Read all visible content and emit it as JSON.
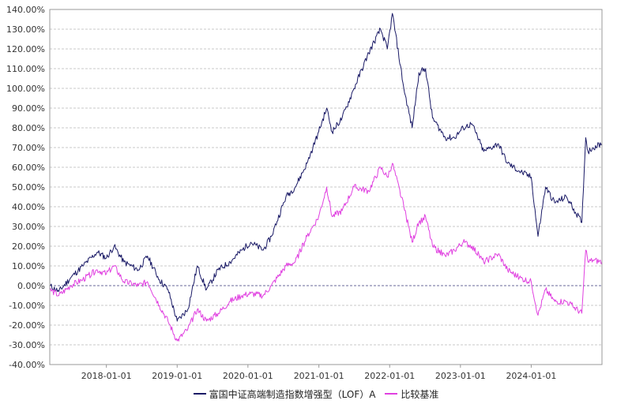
{
  "chart_data": {
    "type": "line",
    "ylim": [
      -40,
      140
    ],
    "y_ticks": [
      "140.00%",
      "130.00%",
      "120.00%",
      "110.00%",
      "100.00%",
      "90.00%",
      "80.00%",
      "70.00%",
      "60.00%",
      "50.00%",
      "40.00%",
      "30.00%",
      "20.00%",
      "10.00%",
      "0.00%",
      "-10.00%",
      "-20.00%",
      "-30.00%",
      "-40.00%"
    ],
    "x_range": [
      "2017-03-15",
      "2024-12-31"
    ],
    "x_ticks": [
      "2018-01-01",
      "2019-01-01",
      "2020-01-01",
      "2021-01-01",
      "2022-01-01",
      "2023-01-01",
      "2024-01-01"
    ],
    "grid": true,
    "legend_position": "bottom",
    "series": [
      {
        "name": "富国中证高端制造指数增强型（LOF）A",
        "color": "#1a1a66",
        "x": [
          "2017-03-15",
          "2017-05-01",
          "2017-07-01",
          "2017-09-01",
          "2017-11-15",
          "2018-01-01",
          "2018-02-10",
          "2018-04-01",
          "2018-06-15",
          "2018-08-01",
          "2018-10-01",
          "2018-11-15",
          "2019-01-01",
          "2019-02-25",
          "2019-04-15",
          "2019-06-01",
          "2019-08-01",
          "2019-10-01",
          "2019-12-01",
          "2020-01-15",
          "2020-03-20",
          "2020-05-01",
          "2020-07-15",
          "2020-09-01",
          "2020-11-01",
          "2020-12-01",
          "2020-12-31",
          "2021-02-10",
          "2021-03-10",
          "2021-05-01",
          "2021-07-01",
          "2021-09-15",
          "2021-11-15",
          "2021-12-20",
          "2022-01-15",
          "2022-03-15",
          "2022-04-27",
          "2022-06-01",
          "2022-07-05",
          "2022-08-10",
          "2022-10-15",
          "2022-12-01",
          "2023-01-15",
          "2023-03-01",
          "2023-05-01",
          "2023-07-15",
          "2023-09-01",
          "2023-11-01",
          "2024-01-01",
          "2024-02-05",
          "2024-03-15",
          "2024-05-01",
          "2024-07-01",
          "2024-09-18",
          "2024-10-08",
          "2024-10-20",
          "2024-11-15",
          "2024-12-31"
        ],
        "values": [
          0,
          -3,
          4,
          10,
          17,
          14,
          20,
          12,
          8,
          15,
          3,
          -2,
          -18,
          -12,
          10,
          -2,
          8,
          12,
          18,
          22,
          18,
          25,
          45,
          50,
          62,
          70,
          78,
          90,
          78,
          85,
          100,
          118,
          130,
          120,
          138,
          100,
          80,
          108,
          110,
          85,
          75,
          75,
          80,
          82,
          68,
          72,
          62,
          58,
          55,
          25,
          50,
          42,
          45,
          32,
          75,
          68,
          70,
          72
        ]
      },
      {
        "name": "比较基准",
        "color": "#e040e0",
        "x": [
          "2017-03-15",
          "2017-05-01",
          "2017-07-01",
          "2017-09-01",
          "2017-11-15",
          "2018-01-01",
          "2018-02-10",
          "2018-04-01",
          "2018-06-15",
          "2018-08-01",
          "2018-10-01",
          "2018-11-15",
          "2019-01-01",
          "2019-02-25",
          "2019-04-15",
          "2019-06-01",
          "2019-08-01",
          "2019-10-01",
          "2019-12-01",
          "2020-01-15",
          "2020-03-20",
          "2020-05-01",
          "2020-07-15",
          "2020-09-01",
          "2020-11-01",
          "2020-12-01",
          "2020-12-31",
          "2021-02-10",
          "2021-03-10",
          "2021-05-01",
          "2021-07-01",
          "2021-09-15",
          "2021-11-15",
          "2021-12-20",
          "2022-01-15",
          "2022-03-15",
          "2022-04-27",
          "2022-06-01",
          "2022-07-05",
          "2022-08-10",
          "2022-10-15",
          "2022-12-01",
          "2023-01-15",
          "2023-03-01",
          "2023-05-01",
          "2023-07-15",
          "2023-09-01",
          "2023-11-01",
          "2024-01-01",
          "2024-02-05",
          "2024-03-15",
          "2024-05-01",
          "2024-07-01",
          "2024-09-18",
          "2024-10-08",
          "2024-10-20",
          "2024-11-15",
          "2024-12-31"
        ],
        "values": [
          -2,
          -5,
          0,
          3,
          8,
          6,
          10,
          2,
          0,
          2,
          -10,
          -18,
          -28,
          -22,
          -12,
          -18,
          -14,
          -8,
          -5,
          -4,
          -5,
          0,
          10,
          12,
          25,
          30,
          35,
          50,
          35,
          38,
          50,
          48,
          60,
          55,
          62,
          40,
          22,
          32,
          35,
          20,
          15,
          18,
          22,
          20,
          12,
          16,
          8,
          4,
          2,
          -15,
          -2,
          -8,
          -8,
          -14,
          18,
          12,
          13,
          12
        ]
      }
    ]
  }
}
